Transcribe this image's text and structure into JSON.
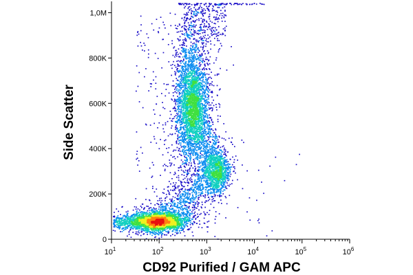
{
  "chart_data": {
    "type": "scatter",
    "title": "",
    "xlabel": "CD92 Purified / GAM APC",
    "ylabel": "Side Scatter",
    "x_scale": "log",
    "xlim": [
      10,
      1000000
    ],
    "ylim": [
      0,
      1050000
    ],
    "x_tick_labels": [
      {
        "value": 10,
        "base": "10",
        "exp": "1"
      },
      {
        "value": 100,
        "base": "10",
        "exp": "2"
      },
      {
        "value": 1000,
        "base": "10",
        "exp": "3"
      },
      {
        "value": 10000,
        "base": "10",
        "exp": "4"
      },
      {
        "value": 100000,
        "base": "10",
        "exp": "5"
      },
      {
        "value": 1000000,
        "base": "10",
        "exp": "6"
      }
    ],
    "y_tick_labels": [
      {
        "value": 0,
        "label": "0"
      },
      {
        "value": 200000,
        "label": "200K"
      },
      {
        "value": 400000,
        "label": "400K"
      },
      {
        "value": 600000,
        "label": "600K"
      },
      {
        "value": 800000,
        "label": "800K"
      },
      {
        "value": 1000000,
        "label": "1,0M"
      }
    ],
    "populations": [
      {
        "x_center": 90,
        "y_center": 80000,
        "events": 2600
      },
      {
        "x_center": 480,
        "y_center": 600000,
        "events": 2700
      },
      {
        "x_center": 1600,
        "y_center": 300000,
        "events": 900
      }
    ],
    "grid": false,
    "legend": "none",
    "colormap": [
      "#1c10c8",
      "#0a8cf0",
      "#10d0c0",
      "#40e040",
      "#f0f020",
      "#ff8010",
      "#e81010"
    ]
  }
}
